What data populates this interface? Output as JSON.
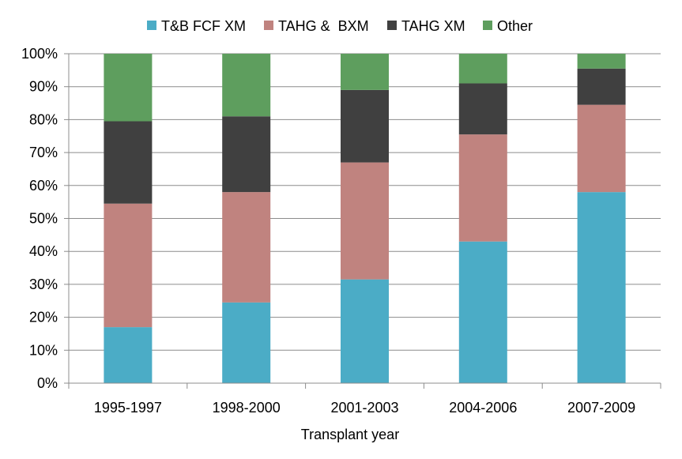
{
  "chart_data": {
    "type": "bar",
    "stacked": true,
    "percent": true,
    "title": "",
    "xlabel": "Transplant year",
    "ylabel": "",
    "ylim": [
      0,
      100
    ],
    "yticks": [
      "0%",
      "10%",
      "20%",
      "30%",
      "40%",
      "50%",
      "60%",
      "70%",
      "80%",
      "90%",
      "100%"
    ],
    "categories": [
      "1995-1997",
      "1998-2000",
      "2001-2003",
      "2004-2006",
      "2007-2009"
    ],
    "series": [
      {
        "name": "T&B FCF XM",
        "color": "#4BACC6",
        "values": [
          17,
          24.5,
          31.5,
          43,
          58
        ]
      },
      {
        "name": "TAHG &  BXM",
        "color": "#C0837F",
        "values": [
          37.5,
          33.5,
          35.5,
          32.5,
          26.5
        ]
      },
      {
        "name": "TAHG XM",
        "color": "#404040",
        "values": [
          25,
          23,
          22,
          15.5,
          11
        ]
      },
      {
        "name": "Other",
        "color": "#5E9E5E",
        "values": [
          20.5,
          19,
          11,
          9,
          4.5
        ]
      }
    ],
    "grid": true,
    "legend_position": "top"
  }
}
